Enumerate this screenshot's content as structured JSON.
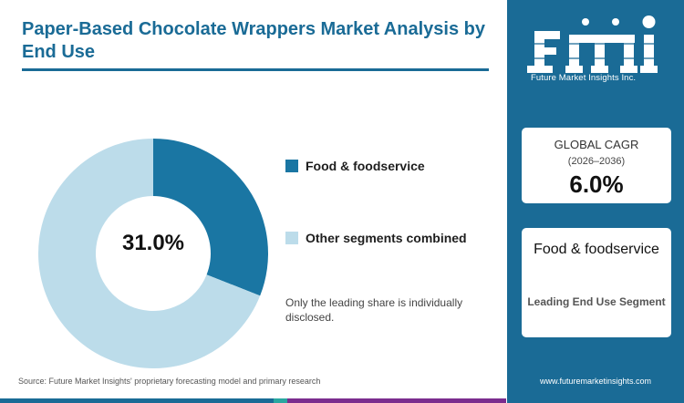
{
  "title": "Paper-Based Chocolate Wrappers Market Analysis by End Use",
  "chart_data": {
    "type": "pie",
    "variant": "donut",
    "slices": [
      {
        "label": "Food & foodservice",
        "value": 31.0,
        "color": "#1a76a3"
      },
      {
        "label": "Other segments combined",
        "value": 69.0,
        "color": "#bcdcea"
      }
    ],
    "center_label": "31.0%",
    "note": "Only the leading share is individually disclosed."
  },
  "source": "Source: Future Market Insights' proprietary forecasting model and primary research",
  "side": {
    "logo_sub": "Future Market Insights Inc.",
    "cagr_label": "GLOBAL CAGR",
    "cagr_period": "(2026–2036)",
    "cagr_value": "6.0%",
    "segment_name": "Food & foodservice",
    "segment_caption": "Leading End Use Segment",
    "website": "www.futuremarketinsights.com"
  },
  "colors": {
    "brand": "#1a6b96",
    "bottom_bar": [
      "#1a6b96",
      "#2aa7a0",
      "#7b2d8e"
    ]
  }
}
